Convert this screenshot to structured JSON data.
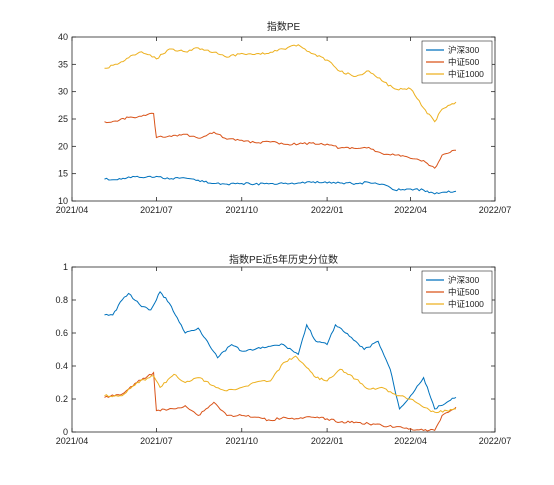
{
  "chart_data": [
    {
      "type": "line",
      "title": "指数PE",
      "xlabel": "",
      "ylabel": "",
      "xlim": [
        "2021-04",
        "2022-07"
      ],
      "ylim": [
        10,
        40
      ],
      "x_ticks": [
        "2021/04",
        "2021/07",
        "2021/10",
        "2022/01",
        "2022/04",
        "2022/07"
      ],
      "y_ticks": [
        "10",
        "15",
        "20",
        "25",
        "30",
        "35",
        "40"
      ],
      "grid": false,
      "legend_position": "top-right",
      "series": [
        {
          "name": "沪深300",
          "color": "#0072BD",
          "points": [
            [
              "2021-05-06",
              14.0
            ],
            [
              "2021-05-20",
              13.9
            ],
            [
              "2021-06-01",
              14.4
            ],
            [
              "2021-06-15",
              14.3
            ],
            [
              "2021-07-01",
              14.5
            ],
            [
              "2021-07-15",
              14.0
            ],
            [
              "2021-08-01",
              14.2
            ],
            [
              "2021-08-15",
              13.8
            ],
            [
              "2021-09-01",
              13.2
            ],
            [
              "2021-09-15",
              13.1
            ],
            [
              "2021-10-01",
              13.2
            ],
            [
              "2021-10-15",
              13.1
            ],
            [
              "2021-11-01",
              13.2
            ],
            [
              "2021-11-15",
              13.2
            ],
            [
              "2021-12-01",
              13.3
            ],
            [
              "2021-12-15",
              13.4
            ],
            [
              "2022-01-01",
              13.3
            ],
            [
              "2022-01-15",
              13.3
            ],
            [
              "2022-02-01",
              13.2
            ],
            [
              "2022-02-15",
              13.4
            ],
            [
              "2022-03-01",
              13.1
            ],
            [
              "2022-03-15",
              12.0
            ],
            [
              "2022-04-01",
              12.2
            ],
            [
              "2022-04-15",
              12.0
            ],
            [
              "2022-04-27",
              11.3
            ],
            [
              "2022-05-10",
              11.6
            ],
            [
              "2022-05-20",
              11.8
            ]
          ]
        },
        {
          "name": "中证500",
          "color": "#D95319",
          "points": [
            [
              "2021-05-06",
              24.5
            ],
            [
              "2021-05-20",
              24.6
            ],
            [
              "2021-06-01",
              25.3
            ],
            [
              "2021-06-15",
              25.5
            ],
            [
              "2021-06-28",
              26.0
            ],
            [
              "2021-07-01",
              21.6
            ],
            [
              "2021-07-15",
              21.9
            ],
            [
              "2021-08-01",
              22.2
            ],
            [
              "2021-08-15",
              21.5
            ],
            [
              "2021-09-01",
              22.6
            ],
            [
              "2021-09-15",
              21.3
            ],
            [
              "2021-10-01",
              21.1
            ],
            [
              "2021-10-15",
              20.7
            ],
            [
              "2021-11-01",
              20.8
            ],
            [
              "2021-11-15",
              20.4
            ],
            [
              "2021-12-01",
              20.4
            ],
            [
              "2021-12-15",
              20.6
            ],
            [
              "2022-01-01",
              20.4
            ],
            [
              "2022-01-15",
              19.7
            ],
            [
              "2022-02-01",
              19.6
            ],
            [
              "2022-02-15",
              19.8
            ],
            [
              "2022-03-01",
              18.7
            ],
            [
              "2022-03-15",
              18.4
            ],
            [
              "2022-04-01",
              17.8
            ],
            [
              "2022-04-15",
              17.4
            ],
            [
              "2022-04-27",
              16.0
            ],
            [
              "2022-05-05",
              18.4
            ],
            [
              "2022-05-20",
              19.3
            ]
          ]
        },
        {
          "name": "中证1000",
          "color": "#EDB120",
          "points": [
            [
              "2021-05-06",
              34.3
            ],
            [
              "2021-05-20",
              35.0
            ],
            [
              "2021-06-01",
              36.2
            ],
            [
              "2021-06-15",
              37.3
            ],
            [
              "2021-07-01",
              36.0
            ],
            [
              "2021-07-15",
              37.8
            ],
            [
              "2021-08-01",
              37.3
            ],
            [
              "2021-08-15",
              38.0
            ],
            [
              "2021-09-01",
              37.2
            ],
            [
              "2021-09-15",
              36.3
            ],
            [
              "2021-10-01",
              37.0
            ],
            [
              "2021-10-15",
              36.8
            ],
            [
              "2021-11-01",
              37.2
            ],
            [
              "2021-11-15",
              37.8
            ],
            [
              "2021-12-01",
              38.6
            ],
            [
              "2021-12-15",
              37.0
            ],
            [
              "2022-01-01",
              35.8
            ],
            [
              "2022-01-15",
              33.7
            ],
            [
              "2022-02-01",
              32.8
            ],
            [
              "2022-02-15",
              33.8
            ],
            [
              "2022-03-01",
              32.0
            ],
            [
              "2022-03-15",
              30.5
            ],
            [
              "2022-04-01",
              30.5
            ],
            [
              "2022-04-15",
              27.0
            ],
            [
              "2022-04-27",
              24.5
            ],
            [
              "2022-05-05",
              26.8
            ],
            [
              "2022-05-20",
              28.1
            ]
          ]
        }
      ]
    },
    {
      "type": "line",
      "title": "指数PE近5年历史分位数",
      "xlabel": "",
      "ylabel": "",
      "xlim": [
        "2021-04",
        "2022-07"
      ],
      "ylim": [
        0,
        1
      ],
      "x_ticks": [
        "2021/04",
        "2021/07",
        "2021/10",
        "2022/01",
        "2022/04",
        "2022/07"
      ],
      "y_ticks": [
        "0",
        "0.2",
        "0.4",
        "0.6",
        "0.8",
        "1"
      ],
      "grid": false,
      "legend_position": "top-right",
      "series": [
        {
          "name": "沪深300",
          "color": "#0072BD",
          "points": [
            [
              "2021-05-06",
              0.71
            ],
            [
              "2021-05-15",
              0.71
            ],
            [
              "2021-05-25",
              0.8
            ],
            [
              "2021-06-01",
              0.84
            ],
            [
              "2021-06-15",
              0.76
            ],
            [
              "2021-06-25",
              0.74
            ],
            [
              "2021-07-05",
              0.85
            ],
            [
              "2021-07-15",
              0.78
            ],
            [
              "2021-08-01",
              0.6
            ],
            [
              "2021-08-15",
              0.63
            ],
            [
              "2021-08-25",
              0.55
            ],
            [
              "2021-09-05",
              0.45
            ],
            [
              "2021-09-20",
              0.53
            ],
            [
              "2021-10-01",
              0.49
            ],
            [
              "2021-10-15",
              0.5
            ],
            [
              "2021-11-01",
              0.52
            ],
            [
              "2021-11-15",
              0.53
            ],
            [
              "2021-12-01",
              0.47
            ],
            [
              "2021-12-10",
              0.65
            ],
            [
              "2021-12-20",
              0.55
            ],
            [
              "2022-01-01",
              0.53
            ],
            [
              "2022-01-10",
              0.65
            ],
            [
              "2022-01-25",
              0.58
            ],
            [
              "2022-02-10",
              0.5
            ],
            [
              "2022-02-25",
              0.55
            ],
            [
              "2022-03-10",
              0.38
            ],
            [
              "2022-03-20",
              0.14
            ],
            [
              "2022-04-01",
              0.22
            ],
            [
              "2022-04-15",
              0.33
            ],
            [
              "2022-04-27",
              0.14
            ],
            [
              "2022-05-10",
              0.18
            ],
            [
              "2022-05-20",
              0.21
            ]
          ]
        },
        {
          "name": "中证500",
          "color": "#D95319",
          "points": [
            [
              "2021-05-06",
              0.21
            ],
            [
              "2021-05-25",
              0.23
            ],
            [
              "2021-06-10",
              0.3
            ],
            [
              "2021-06-28",
              0.36
            ],
            [
              "2021-07-01",
              0.13
            ],
            [
              "2021-07-20",
              0.14
            ],
            [
              "2021-08-01",
              0.16
            ],
            [
              "2021-08-15",
              0.1
            ],
            [
              "2021-09-01",
              0.18
            ],
            [
              "2021-09-15",
              0.1
            ],
            [
              "2021-10-01",
              0.1
            ],
            [
              "2021-10-15",
              0.09
            ],
            [
              "2021-11-01",
              0.07
            ],
            [
              "2021-11-15",
              0.09
            ],
            [
              "2021-12-01",
              0.08
            ],
            [
              "2021-12-15",
              0.09
            ],
            [
              "2022-01-01",
              0.08
            ],
            [
              "2022-01-15",
              0.06
            ],
            [
              "2022-02-01",
              0.06
            ],
            [
              "2022-02-15",
              0.05
            ],
            [
              "2022-03-01",
              0.04
            ],
            [
              "2022-03-15",
              0.03
            ],
            [
              "2022-04-01",
              0.02
            ],
            [
              "2022-04-15",
              0.01
            ],
            [
              "2022-04-27",
              0.01
            ],
            [
              "2022-05-05",
              0.1
            ],
            [
              "2022-05-20",
              0.15
            ]
          ]
        },
        {
          "name": "中证1000",
          "color": "#EDB120",
          "points": [
            [
              "2021-05-06",
              0.22
            ],
            [
              "2021-05-25",
              0.22
            ],
            [
              "2021-06-10",
              0.3
            ],
            [
              "2021-06-28",
              0.34
            ],
            [
              "2021-07-05",
              0.27
            ],
            [
              "2021-07-20",
              0.35
            ],
            [
              "2021-08-01",
              0.3
            ],
            [
              "2021-08-15",
              0.33
            ],
            [
              "2021-09-01",
              0.28
            ],
            [
              "2021-09-15",
              0.25
            ],
            [
              "2021-10-01",
              0.27
            ],
            [
              "2021-10-15",
              0.3
            ],
            [
              "2021-11-01",
              0.31
            ],
            [
              "2021-11-15",
              0.42
            ],
            [
              "2021-11-28",
              0.46
            ],
            [
              "2021-12-10",
              0.39
            ],
            [
              "2021-12-20",
              0.33
            ],
            [
              "2022-01-01",
              0.31
            ],
            [
              "2022-01-15",
              0.38
            ],
            [
              "2022-02-01",
              0.32
            ],
            [
              "2022-02-15",
              0.26
            ],
            [
              "2022-03-01",
              0.27
            ],
            [
              "2022-03-15",
              0.23
            ],
            [
              "2022-04-01",
              0.2
            ],
            [
              "2022-04-15",
              0.15
            ],
            [
              "2022-04-27",
              0.12
            ],
            [
              "2022-05-10",
              0.13
            ],
            [
              "2022-05-20",
              0.14
            ]
          ]
        }
      ]
    }
  ]
}
